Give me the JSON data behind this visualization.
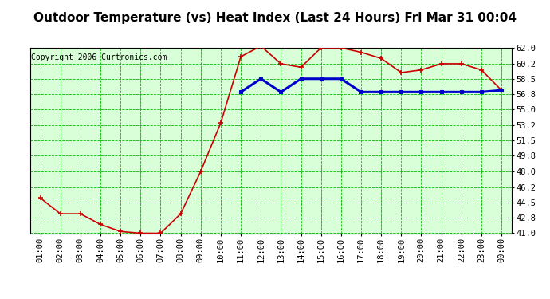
{
  "title": "Outdoor Temperature (vs) Heat Index (Last 24 Hours) Fri Mar 31 00:04",
  "copyright": "Copyright 2006 Curtronics.com",
  "x_labels": [
    "01:00",
    "02:00",
    "03:00",
    "04:00",
    "05:00",
    "06:00",
    "07:00",
    "08:00",
    "09:00",
    "10:00",
    "11:00",
    "12:00",
    "13:00",
    "14:00",
    "15:00",
    "16:00",
    "17:00",
    "18:00",
    "19:00",
    "20:00",
    "21:00",
    "22:00",
    "23:00",
    "00:00"
  ],
  "temp_data": [
    45.0,
    43.2,
    43.2,
    42.0,
    41.2,
    41.0,
    41.0,
    43.2,
    48.0,
    53.5,
    61.0,
    62.2,
    60.2,
    59.8,
    62.0,
    62.0,
    61.5,
    60.8,
    59.2,
    59.5,
    60.2,
    60.2,
    59.5,
    57.2
  ],
  "heat_data": [
    null,
    null,
    null,
    null,
    null,
    null,
    null,
    null,
    null,
    null,
    57.0,
    58.5,
    57.0,
    58.5,
    58.5,
    58.5,
    57.0,
    57.0,
    57.0,
    57.0,
    57.0,
    57.0,
    57.0,
    57.2
  ],
  "temp_color": "#cc0000",
  "heat_color": "#0000cc",
  "bg_color": "#ffffff",
  "plot_bg": "#d8ffd8",
  "grid_color_major": "#808080",
  "grid_color_minor": "#00bb00",
  "ylim": [
    41.0,
    62.0
  ],
  "yticks": [
    41.0,
    42.8,
    44.5,
    46.2,
    48.0,
    49.8,
    51.5,
    53.2,
    55.0,
    56.8,
    58.5,
    60.2,
    62.0
  ],
  "title_fontsize": 11,
  "copyright_fontsize": 7,
  "tick_fontsize": 7.5,
  "major_vert_positions": [
    2,
    5,
    8,
    11,
    14,
    17,
    20,
    23
  ]
}
